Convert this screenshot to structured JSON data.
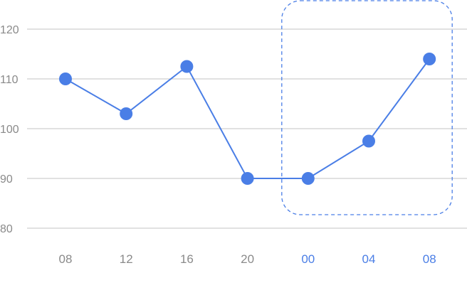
{
  "chart_data": {
    "type": "line",
    "categories": [
      "08",
      "12",
      "16",
      "20",
      "00",
      "04",
      "08"
    ],
    "series": [
      {
        "values": [
          110,
          103,
          112.5,
          90,
          90,
          97.5,
          114
        ]
      }
    ],
    "yticks": [
      80,
      90,
      100,
      110,
      120
    ],
    "ylim": [
      80,
      120
    ],
    "grid": true,
    "highlight": {
      "from_index": 4,
      "to_index": 6,
      "style": "dashed rounded box"
    },
    "colors": {
      "line": "#4a7ee6",
      "highlight_label": "#4a7ee6",
      "tick_label": "#8a8a8a",
      "grid": "#cfcfcf"
    }
  }
}
